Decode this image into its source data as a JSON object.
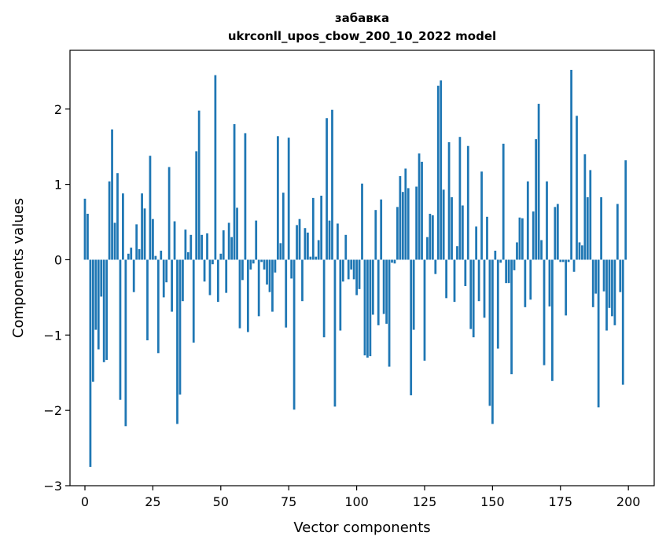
{
  "chart_data": {
    "type": "bar",
    "title": "забавка",
    "subtitle": "ukrconll_upos_cbow_200_10_2022 model",
    "xlabel": "Vector components",
    "ylabel": "Components values",
    "xlim": [
      -5.5,
      209.5
    ],
    "ylim": [
      -3.0,
      2.78
    ],
    "xticks": [
      0,
      25,
      50,
      75,
      100,
      125,
      150,
      175,
      200
    ],
    "yticks": [
      -3,
      -2,
      -1,
      0,
      1,
      2
    ],
    "xtick_labels": [
      "0",
      "25",
      "50",
      "75",
      "100",
      "125",
      "150",
      "175",
      "200"
    ],
    "ytick_labels": [
      "−3",
      "−2",
      "−1",
      "0",
      "1",
      "2"
    ],
    "bar_color": "#1f77b4",
    "grid": false,
    "values": [
      0.81,
      0.61,
      -2.75,
      -1.62,
      -0.93,
      -1.19,
      -0.49,
      -1.36,
      -1.33,
      1.04,
      1.73,
      0.49,
      1.15,
      -1.86,
      0.88,
      -2.21,
      0.08,
      0.16,
      -0.43,
      0.47,
      0.14,
      0.88,
      0.68,
      -1.07,
      1.38,
      0.54,
      0.05,
      -1.24,
      0.12,
      -0.5,
      -0.3,
      1.23,
      -0.69,
      0.51,
      -2.18,
      -1.79,
      -0.55,
      0.4,
      0.1,
      0.33,
      -1.1,
      1.44,
      1.98,
      0.33,
      -0.29,
      0.35,
      -0.47,
      -0.06,
      2.45,
      -0.56,
      0.08,
      0.39,
      -0.44,
      0.49,
      0.3,
      1.8,
      0.69,
      -0.91,
      -0.27,
      1.68,
      -0.96,
      -0.13,
      -0.05,
      0.52,
      -0.75,
      -0.03,
      -0.13,
      -0.33,
      -0.43,
      -0.69,
      -0.17,
      1.64,
      0.22,
      0.89,
      -0.9,
      1.62,
      -0.25,
      -1.99,
      0.46,
      0.54,
      -0.55,
      0.42,
      0.36,
      0.04,
      0.82,
      0.04,
      0.26,
      0.85,
      -1.03,
      1.88,
      0.52,
      1.99,
      -1.95,
      0.48,
      -0.94,
      -0.29,
      0.33,
      -0.26,
      -0.13,
      -0.26,
      -0.47,
      -0.39,
      1.01,
      -1.27,
      -1.3,
      -1.28,
      -0.73,
      0.66,
      -0.87,
      0.8,
      -0.72,
      -0.85,
      -1.42,
      -0.04,
      -0.05,
      0.7,
      1.11,
      0.9,
      1.21,
      0.95,
      -1.8,
      -0.93,
      0.97,
      1.41,
      1.3,
      -1.34,
      0.3,
      0.61,
      0.59,
      -0.19,
      2.31,
      2.38,
      0.93,
      -0.51,
      1.56,
      0.83,
      -0.56,
      0.18,
      1.63,
      0.72,
      -0.35,
      1.51,
      -0.92,
      -1.03,
      0.44,
      -0.55,
      1.17,
      -0.77,
      0.57,
      -1.94,
      -2.18,
      0.12,
      -1.18,
      -0.04,
      1.54,
      -0.31,
      -0.31,
      -1.52,
      -0.14,
      0.23,
      0.56,
      0.55,
      -0.63,
      1.04,
      -0.53,
      0.64,
      1.6,
      2.07,
      0.26,
      -1.4,
      1.04,
      -0.62,
      -1.61,
      0.7,
      0.74,
      -0.03,
      -0.03,
      -0.74,
      -0.03,
      2.52,
      -0.16,
      1.91,
      0.23,
      0.19,
      1.4,
      0.83,
      1.19,
      -0.63,
      -0.45,
      -1.96,
      0.83,
      -0.42,
      -0.94,
      -0.64,
      -0.75,
      -0.87,
      0.74,
      -0.43,
      -1.66,
      1.32
    ]
  }
}
